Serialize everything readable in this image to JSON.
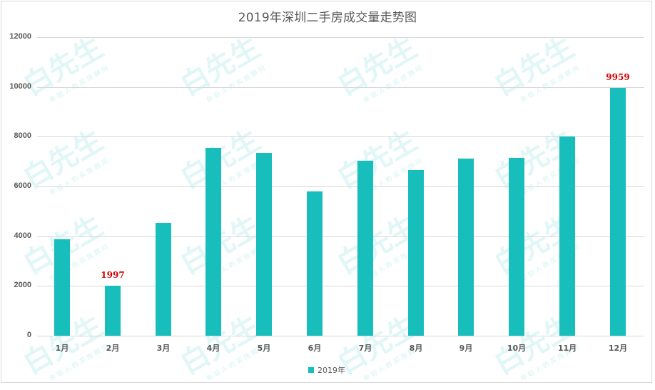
{
  "chart_data": {
    "type": "bar",
    "title": "2019年深圳二手房成交量走势图",
    "categories": [
      "1月",
      "2月",
      "3月",
      "4月",
      "5月",
      "6月",
      "7月",
      "8月",
      "9月",
      "10月",
      "11月",
      "12月"
    ],
    "series": [
      {
        "name": "2019年",
        "color": "#17BEBB",
        "values": [
          3875,
          1997,
          4534,
          7555,
          7346,
          5805,
          7039,
          6657,
          7116,
          7145,
          8015,
          9959
        ]
      }
    ],
    "data_labels": [
      {
        "category": "2月",
        "value": "1997",
        "color": "#D40000"
      },
      {
        "category": "12月",
        "value": "9959",
        "color": "#D40000"
      }
    ],
    "xlabel": "",
    "ylabel": "",
    "ylim": [
      0,
      12000
    ],
    "yticks": [
      "0",
      "2000",
      "4000",
      "6000",
      "8000",
      "10000",
      "12000"
    ],
    "grid": true,
    "legend_position": "bottom"
  },
  "watermark": {
    "text": "白先生",
    "subtext": "年轻人的买房顾问"
  }
}
